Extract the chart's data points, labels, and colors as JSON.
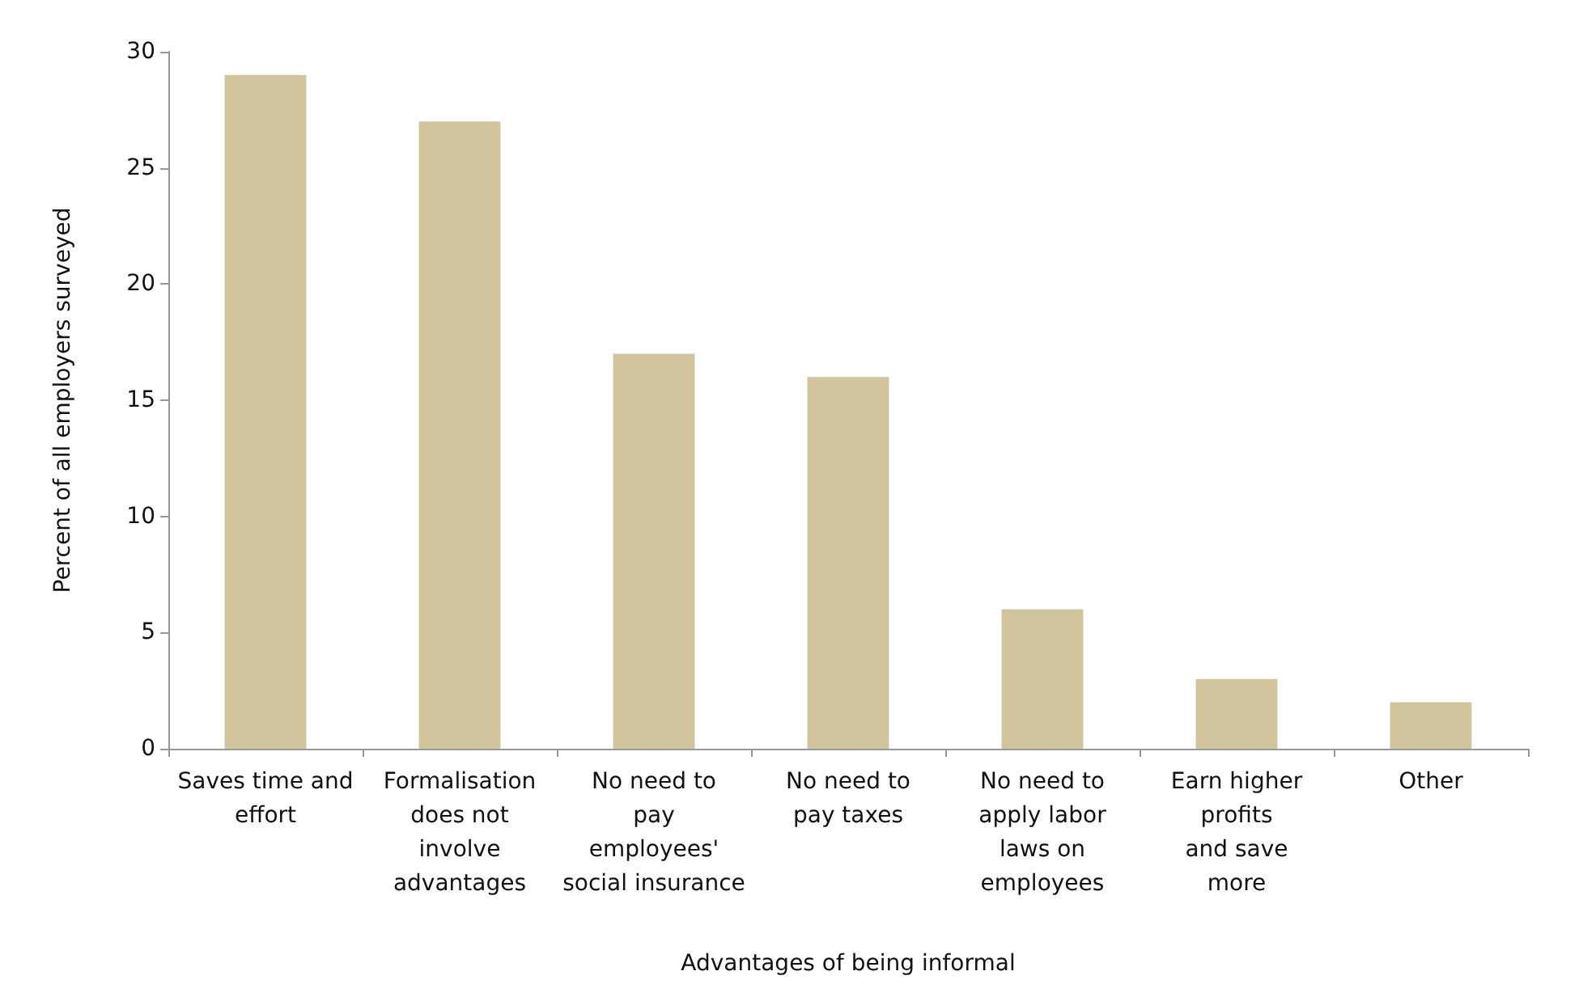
{
  "chart_data": {
    "type": "bar",
    "categories": [
      "Saves time and\neffort",
      "Formalisation\ndoes not\ninvolve\nadvantages",
      "No need to\npay\nemployees'\nsocial insurance",
      "No need to\npay taxes",
      "No need to\napply labor\nlaws on\nemployees",
      "Earn higher\nprofits\nand save\nmore",
      "Other"
    ],
    "values": [
      29,
      27,
      17,
      16,
      6,
      3,
      2
    ],
    "color": "#cfc49b",
    "xlabel": "Advantages of being informal",
    "ylabel": "Percent of all employers surveyed",
    "ylim": [
      0,
      30
    ],
    "yticks": [
      0,
      5,
      10,
      15,
      20,
      25,
      30
    ],
    "grid": false
  }
}
